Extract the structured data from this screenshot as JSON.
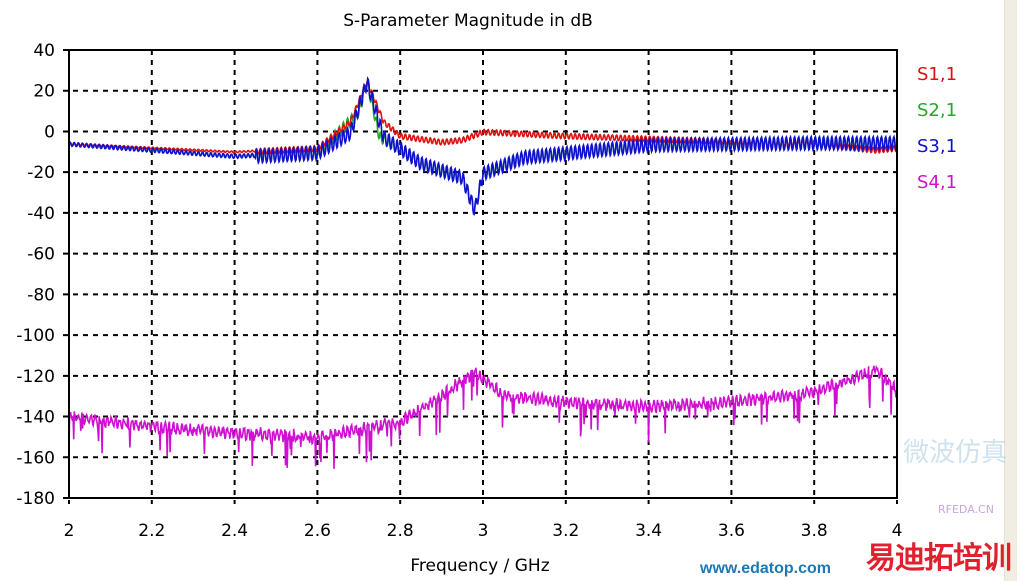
{
  "chart_data": {
    "type": "line",
    "title": "S-Parameter Magnitude in dB",
    "xlabel": "Frequency / GHz",
    "ylabel": "",
    "xlim": [
      2,
      4
    ],
    "ylim": [
      -180,
      40
    ],
    "grid": true,
    "legend_placement": "right",
    "x_ticks": [
      "2",
      "2.2",
      "2.4",
      "2.6",
      "2.8",
      "3",
      "3.2",
      "3.4",
      "3.6",
      "3.8",
      "4"
    ],
    "y_ticks": [
      "40",
      "20",
      "0",
      "-20",
      "-40",
      "-60",
      "-80",
      "-100",
      "-120",
      "-140",
      "-160",
      "-180"
    ],
    "series": [
      {
        "name": "S2,1",
        "color": "#22aa22",
        "ripple_db": 4,
        "points": [
          [
            2,
            -6
          ],
          [
            2.4,
            -12
          ],
          [
            2.6,
            -10
          ],
          [
            2.7,
            10
          ],
          [
            2.72,
            25
          ],
          [
            2.75,
            -2
          ],
          [
            2.85,
            -15
          ],
          [
            2.95,
            -22
          ],
          [
            2.98,
            -38
          ],
          [
            3.0,
            -20
          ],
          [
            3.1,
            -12
          ],
          [
            3.4,
            -6
          ],
          [
            3.8,
            -5
          ],
          [
            4,
            -5
          ]
        ]
      },
      {
        "name": "S1,1",
        "color": "#e01010",
        "ripple_db": 2,
        "points": [
          [
            2,
            -6
          ],
          [
            2.4,
            -10
          ],
          [
            2.6,
            -8
          ],
          [
            2.68,
            5
          ],
          [
            2.72,
            25
          ],
          [
            2.76,
            5
          ],
          [
            2.8,
            -2
          ],
          [
            2.9,
            -5
          ],
          [
            2.95,
            -4
          ],
          [
            3.0,
            0
          ],
          [
            3.2,
            -2
          ],
          [
            3.5,
            -4
          ],
          [
            3.8,
            -6
          ],
          [
            3.95,
            -9
          ],
          [
            4,
            -8
          ]
        ]
      },
      {
        "name": "S3,1",
        "color": "#1010d0",
        "ripple_db": 5,
        "points": [
          [
            2,
            -6
          ],
          [
            2.4,
            -12
          ],
          [
            2.6,
            -10
          ],
          [
            2.68,
            0
          ],
          [
            2.72,
            25
          ],
          [
            2.76,
            -2
          ],
          [
            2.85,
            -15
          ],
          [
            2.95,
            -22
          ],
          [
            2.98,
            -38
          ],
          [
            3.0,
            -20
          ],
          [
            3.1,
            -12
          ],
          [
            3.4,
            -6
          ],
          [
            3.8,
            -5
          ],
          [
            4,
            -5
          ]
        ]
      },
      {
        "name": "S4,1",
        "color": "#d010d0",
        "ripple_db": 9,
        "points": [
          [
            2,
            -140
          ],
          [
            2.2,
            -145
          ],
          [
            2.4,
            -148
          ],
          [
            2.6,
            -150
          ],
          [
            2.8,
            -143
          ],
          [
            2.9,
            -130
          ],
          [
            2.98,
            -118
          ],
          [
            3.05,
            -130
          ],
          [
            3.2,
            -133
          ],
          [
            3.4,
            -135
          ],
          [
            3.6,
            -133
          ],
          [
            3.8,
            -128
          ],
          [
            3.95,
            -117
          ],
          [
            4,
            -127
          ]
        ]
      }
    ],
    "legend": [
      "S1,1",
      "S2,1",
      "S3,1",
      "S4,1"
    ]
  },
  "watermark": {
    "site": "RFEDA.CN",
    "brand": "易迪拓培训",
    "url": "www.edatop.com",
    "faint": "微波仿真"
  }
}
